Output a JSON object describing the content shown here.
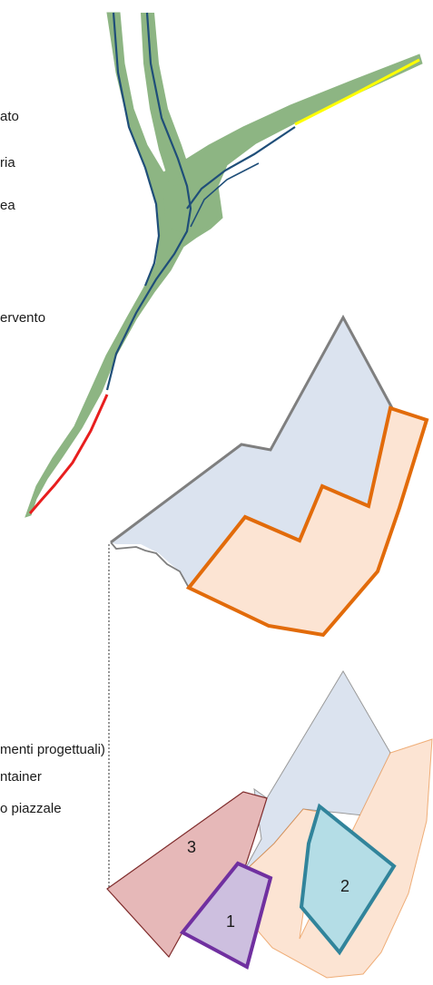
{
  "legend_top": [
    {
      "text": "ato"
    },
    {
      "text": "ria"
    },
    {
      "text": "ea"
    },
    {
      "text": "ervento"
    }
  ],
  "legend_bottom": [
    {
      "text": "menti progettuali)"
    },
    {
      "text": "ntainer"
    },
    {
      "text": "o piazzale"
    }
  ],
  "zones": [
    {
      "number": "3",
      "color": "#e6b8b8"
    },
    {
      "number": "1",
      "color": "#cdbfdf"
    },
    {
      "number": "2",
      "color": "#b4dde6"
    }
  ],
  "colors": {
    "green_corridor": "#8db583",
    "dark_blue_line": "#1f4e79",
    "yellow_segment": "#ffff00",
    "red_segment": "#e81e1e",
    "light_blue_area": "#dbe3ef",
    "orange_area_fill": "#fce4d3",
    "orange_outline": "#e26b0a",
    "grey_outline": "#7f7f7f",
    "purple_outline": "#7030a0",
    "teal_outline": "#31849b"
  }
}
